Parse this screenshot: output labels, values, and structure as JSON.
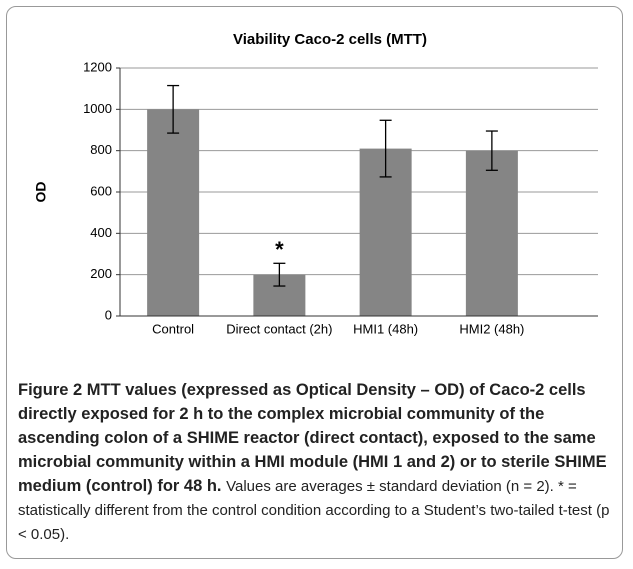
{
  "chart_data": {
    "type": "bar",
    "title": "Viability Caco-2 cells (MTT)",
    "y_label": "OD",
    "categories": [
      "Control",
      "Direct contact (2h)",
      "HMI1 (48h)",
      "HMI2 (48h)"
    ],
    "values": [
      1000,
      200,
      810,
      800
    ],
    "errors": [
      115,
      55,
      137,
      95
    ],
    "color": "#858585",
    "ylim": [
      0,
      1200
    ],
    "yticks": [
      0,
      200,
      400,
      600,
      800,
      1000,
      1200
    ],
    "grid": true,
    "annotations": [
      {
        "text": "*",
        "category": 1
      }
    ]
  },
  "caption": {
    "heading": "Figure 2 MTT values (expressed as Optical Density – OD) of Caco-2 cells directly exposed for 2 h to the complex microbial community of the ascending colon of a SHIME reactor (direct contact), exposed to the same microbial community within a HMI module (HMI 1 and 2) or to sterile SHIME medium (control) for 48 h.",
    "body": "Values are averages ± standard deviation (n = 2). * = statistically different from the control condition according to a Student’s two-tailed t-test (p < 0.05)."
  }
}
